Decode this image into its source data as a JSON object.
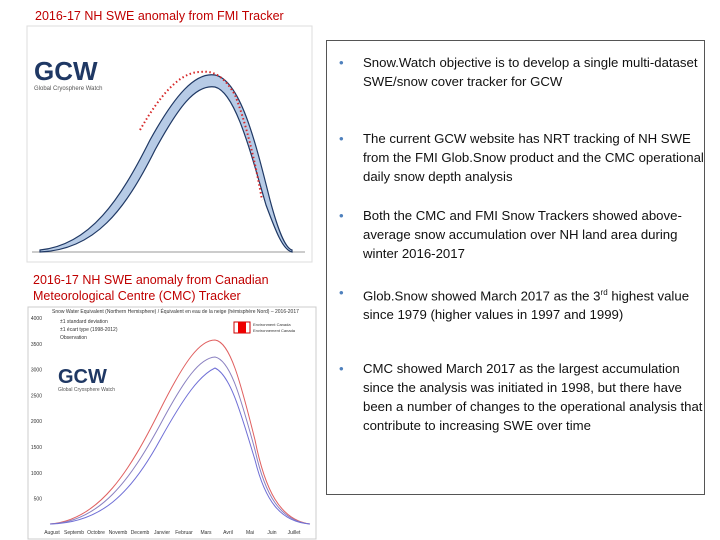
{
  "left": {
    "fmi_title": "2016-17 NH SWE anomaly from FMI Tracker",
    "cmc_title": "2016-17 NH SWE anomaly from Canadian Meteorological Centre (CMC) Tracker",
    "logo": "GCW",
    "logo_sub": "Global Cryosphere Watch"
  },
  "cmc_chart": {
    "title": "Snow Water Equivalent (Northern Hemisphere) / Équivalent en eau de la neige (hémisphère Nord) – 2016-2017",
    "legend": [
      "±1 standard deviation",
      "±1 écart type (1998-2012)",
      "Observation"
    ],
    "yticks": [
      4000,
      3500,
      3000,
      2500,
      2000,
      1500,
      1000,
      500
    ],
    "months": [
      "August",
      "Septemb",
      "Octobre",
      "Novemb",
      "Decemb",
      "Janvier",
      "Februar",
      "Mars",
      "Avril",
      "Mai",
      "Juin",
      "Juillet"
    ],
    "agency": [
      "Environment Canada",
      "Environnement Canada"
    ]
  },
  "bullets": [
    "Snow.Watch objective is to develop a single multi-dataset SWE/snow cover tracker for GCW",
    "The current GCW website has NRT tracking of NH SWE from the FMI Glob.Snow product and the CMC operational daily snow depth analysis",
    "Both the CMC and FMI Snow Trackers showed above-average snow accumulation over NH land area during winter 2016-2017",
    {
      "before": "Glob.Snow showed March 2017 as the 3",
      "sup": "rd",
      "after": " highest value since 1979 (higher values in 1997 and 1999)"
    },
    "CMC showed March 2017 as the largest accumulation since the analysis was initiated in 1998, but there have been a number of changes to the operational analysis  that contribute to increasing SWE over time"
  ]
}
